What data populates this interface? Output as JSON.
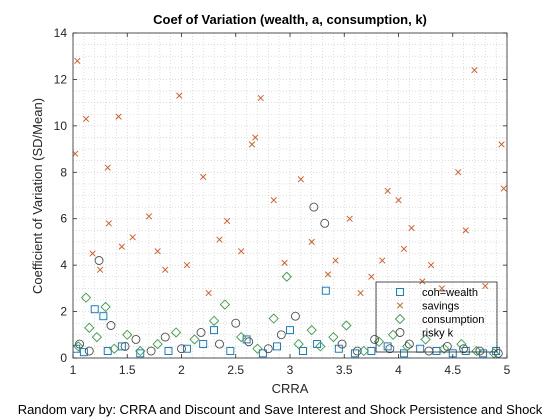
{
  "figure": {
    "title": "Coef of Variation (wealth, a, consumption, k)",
    "xlabel": "CRRA",
    "ylabel": "Coefficient of Variation (SD/Mean)",
    "caption": "Random vary by: CRRA and Discount and Save Interest and Shock Persistence and Shock"
  },
  "chart_data": {
    "type": "scatter",
    "title": "Coef of Variation (wealth, a, consumption, k)",
    "xlabel": "CRRA",
    "ylabel": "Coefficient of Variation (SD/Mean)",
    "xlim": [
      1,
      5
    ],
    "ylim": [
      0,
      14
    ],
    "xticks": [
      1,
      1.5,
      2,
      2.5,
      3,
      3.5,
      4,
      4.5,
      5
    ],
    "xtick_labels": [
      "1",
      "1.5",
      "2",
      "2.5",
      "3",
      "3.5",
      "4",
      "4.5",
      "5"
    ],
    "yticks": [
      0,
      2,
      4,
      6,
      8,
      10,
      12,
      14
    ],
    "ytick_labels": [
      "0",
      "2",
      "4",
      "6",
      "8",
      "10",
      "12",
      "14"
    ],
    "grid": "minor-dotted",
    "legend_position": "bottom-right",
    "series": [
      {
        "name": "coh=wealth",
        "marker": "square",
        "color": "#0072BD",
        "x": [
          1.03,
          1.1,
          1.2,
          1.28,
          1.32,
          1.45,
          1.62,
          1.88,
          2.05,
          2.2,
          2.3,
          2.45,
          2.6,
          2.75,
          2.88,
          3.0,
          3.12,
          3.25,
          3.33,
          3.45,
          3.6,
          3.75,
          3.9,
          4.05,
          4.2,
          4.35,
          4.5,
          4.62,
          4.78,
          4.9
        ],
        "y": [
          0.4,
          0.25,
          2.1,
          1.8,
          0.3,
          0.5,
          0.2,
          0.3,
          0.4,
          0.6,
          1.2,
          0.3,
          0.8,
          0.2,
          0.5,
          1.2,
          0.3,
          0.6,
          2.9,
          0.4,
          0.2,
          0.3,
          0.5,
          0.2,
          0.4,
          0.3,
          0.2,
          0.3,
          0.2,
          0.3
        ]
      },
      {
        "name": "savings",
        "marker": "x",
        "color": "#D95319",
        "x": [
          1.02,
          1.04,
          1.12,
          1.18,
          1.25,
          1.32,
          1.33,
          1.42,
          1.45,
          1.55,
          1.7,
          1.78,
          1.85,
          1.98,
          2.05,
          2.2,
          2.25,
          2.35,
          2.42,
          2.55,
          2.65,
          2.68,
          2.73,
          2.85,
          2.95,
          3.1,
          3.2,
          3.35,
          3.42,
          3.55,
          3.65,
          3.75,
          3.85,
          3.9,
          4.0,
          4.05,
          4.12,
          4.22,
          4.3,
          4.4,
          4.55,
          4.62,
          4.7,
          4.8,
          4.95,
          4.97
        ],
        "y": [
          8.8,
          12.8,
          10.3,
          4.5,
          3.8,
          8.2,
          5.8,
          10.4,
          4.8,
          5.2,
          6.1,
          4.6,
          3.8,
          11.3,
          4.0,
          7.8,
          2.8,
          5.1,
          5.9,
          4.6,
          9.2,
          9.5,
          11.2,
          6.8,
          4.1,
          7.7,
          5.0,
          3.6,
          4.2,
          6.0,
          2.8,
          3.5,
          4.2,
          7.2,
          6.8,
          4.7,
          5.6,
          3.3,
          4.0,
          3.0,
          8.0,
          5.5,
          12.4,
          3.1,
          9.2,
          7.3
        ]
      },
      {
        "name": "consumption",
        "marker": "diamond",
        "color": "#3B9B4B",
        "x": [
          1.05,
          1.12,
          1.15,
          1.22,
          1.3,
          1.38,
          1.5,
          1.62,
          1.78,
          1.95,
          2.12,
          2.3,
          2.4,
          2.55,
          2.7,
          2.85,
          2.97,
          3.08,
          3.2,
          3.28,
          3.4,
          3.52,
          3.68,
          3.82,
          3.95,
          4.08,
          4.25,
          4.42,
          4.58,
          4.72,
          4.88
        ],
        "y": [
          0.5,
          2.6,
          1.3,
          0.9,
          2.2,
          0.4,
          1.0,
          0.3,
          0.6,
          1.1,
          0.8,
          1.6,
          2.3,
          0.9,
          0.4,
          1.7,
          3.5,
          0.6,
          1.2,
          0.5,
          0.9,
          1.4,
          0.3,
          0.7,
          1.0,
          0.5,
          0.8,
          0.4,
          0.6,
          0.3,
          0.2
        ]
      },
      {
        "name": "risky k",
        "marker": "circle",
        "color": "#4D4D4D",
        "x": [
          1.06,
          1.15,
          1.24,
          1.35,
          1.48,
          1.58,
          1.72,
          1.85,
          2.0,
          2.18,
          2.35,
          2.5,
          2.62,
          2.8,
          2.92,
          3.05,
          3.22,
          3.32,
          3.48,
          3.62,
          3.78,
          3.92,
          4.1,
          4.28,
          4.45,
          4.6,
          4.75,
          4.92
        ],
        "y": [
          0.6,
          0.3,
          4.2,
          1.4,
          0.5,
          0.8,
          0.3,
          0.9,
          0.4,
          1.1,
          0.6,
          1.5,
          0.7,
          0.4,
          1.0,
          1.8,
          6.5,
          5.8,
          0.6,
          0.3,
          0.8,
          0.4,
          0.6,
          0.3,
          0.5,
          0.4,
          0.3,
          0.2
        ]
      }
    ]
  }
}
